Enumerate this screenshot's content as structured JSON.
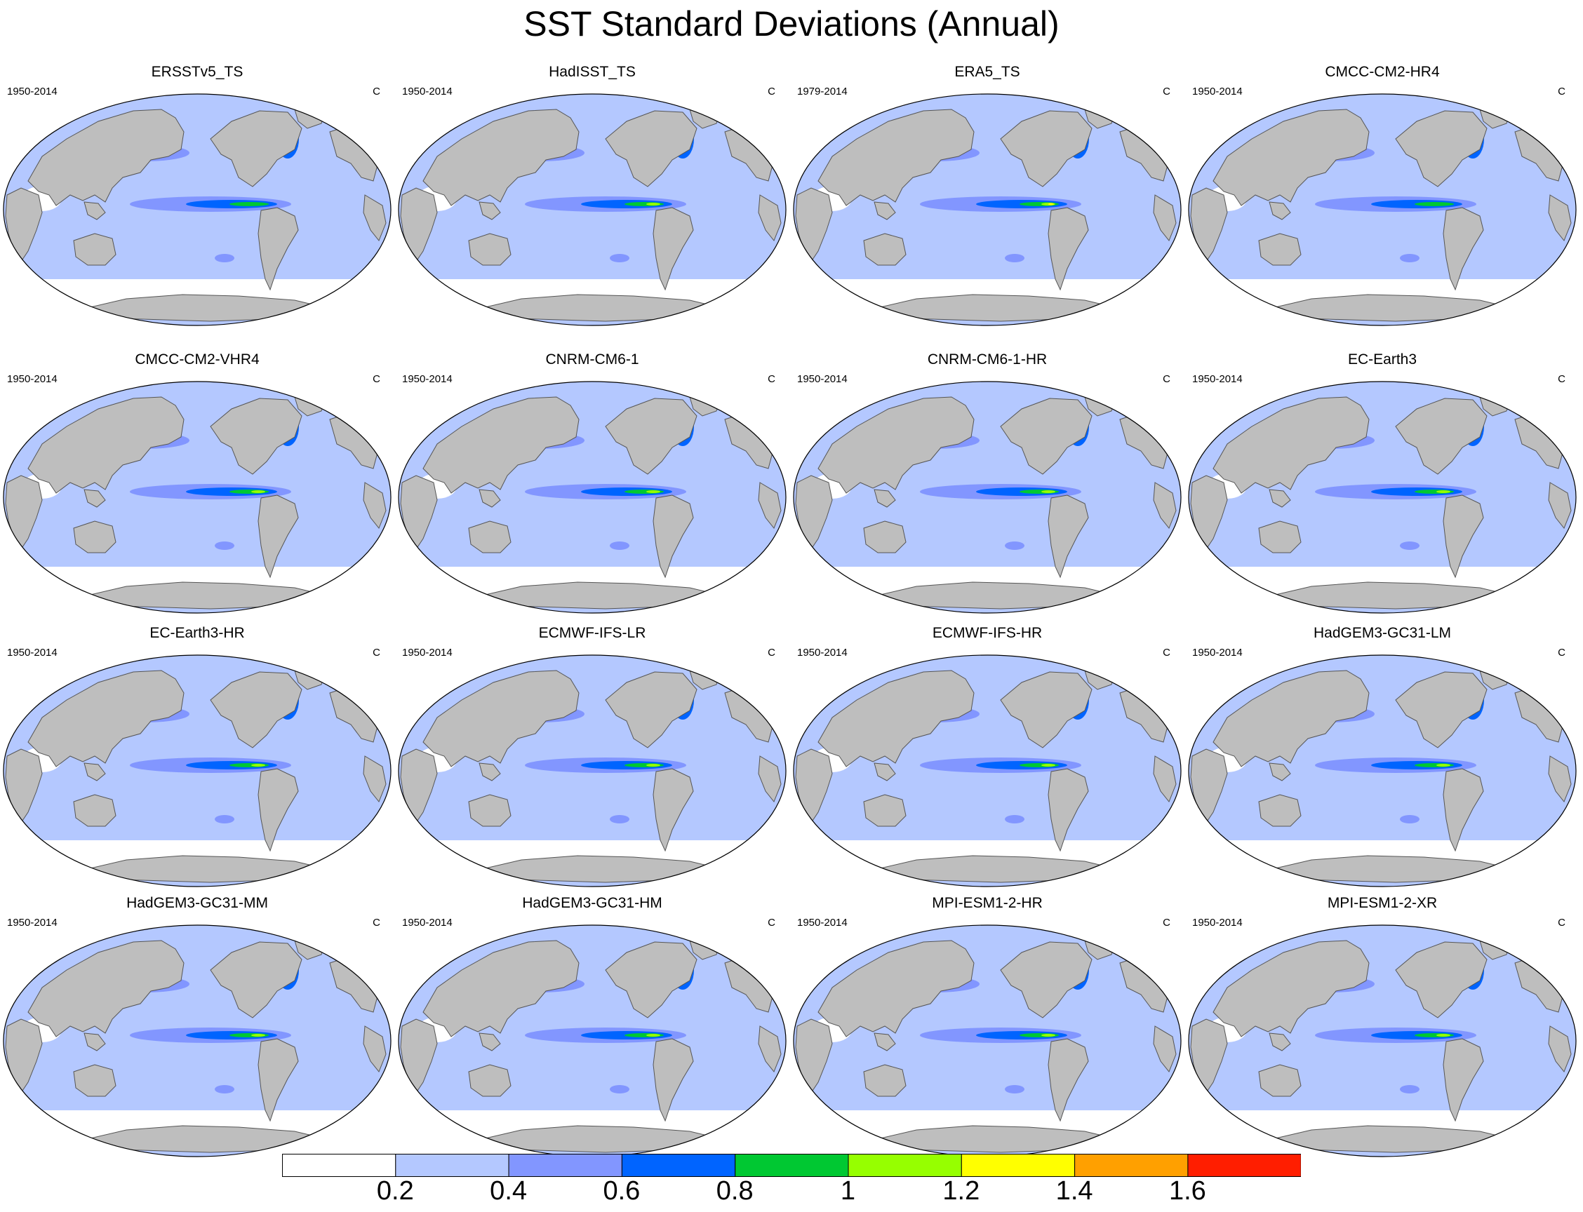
{
  "title": "SST Standard Deviations (Annual)",
  "colors": {
    "land": "#bebebe",
    "levels": [
      "#ffffff",
      "#b4c8ff",
      "#8296ff",
      "#0064ff",
      "#00c832",
      "#96ff00",
      "#ffff00",
      "#ffa000",
      "#ff1e00"
    ]
  },
  "panels": [
    {
      "name": "ERSSTv5_TS",
      "period": "1950-2014",
      "unit": "C",
      "nino_peak": 0.8
    },
    {
      "name": "HadISST_TS",
      "period": "1950-2014",
      "unit": "C",
      "nino_peak": 1.0
    },
    {
      "name": "ERA5_TS",
      "period": "1979-2014",
      "unit": "C",
      "nino_peak": 1.2
    },
    {
      "name": "CMCC-CM2-HR4",
      "period": "1950-2014",
      "unit": "C",
      "nino_peak": 0.8
    },
    {
      "name": "CMCC-CM2-VHR4",
      "period": "1950-2014",
      "unit": "C",
      "nino_peak": 1.0
    },
    {
      "name": "CNRM-CM6-1",
      "period": "1950-2014",
      "unit": "C",
      "nino_peak": 1.0
    },
    {
      "name": "CNRM-CM6-1-HR",
      "period": "1950-2014",
      "unit": "C",
      "nino_peak": 1.0
    },
    {
      "name": "EC-Earth3",
      "period": "1950-2014",
      "unit": "C",
      "nino_peak": 1.0
    },
    {
      "name": "EC-Earth3-HR",
      "period": "1950-2014",
      "unit": "C",
      "nino_peak": 1.0
    },
    {
      "name": "ECMWF-IFS-LR",
      "period": "1950-2014",
      "unit": "C",
      "nino_peak": 1.0
    },
    {
      "name": "ECMWF-IFS-HR",
      "period": "1950-2014",
      "unit": "C",
      "nino_peak": 1.0
    },
    {
      "name": "HadGEM3-GC31-LM",
      "period": "1950-2014",
      "unit": "C",
      "nino_peak": 1.0
    },
    {
      "name": "HadGEM3-GC31-MM",
      "period": "1950-2014",
      "unit": "C",
      "nino_peak": 1.0
    },
    {
      "name": "HadGEM3-GC31-HM",
      "period": "1950-2014",
      "unit": "C",
      "nino_peak": 1.0
    },
    {
      "name": "MPI-ESM1-2-HR",
      "period": "1950-2014",
      "unit": "C",
      "nino_peak": 1.0
    },
    {
      "name": "MPI-ESM1-2-XR",
      "period": "1950-2014",
      "unit": "C",
      "nino_peak": 1.0
    }
  ],
  "colorbar": {
    "labels": [
      "0.2",
      "0.4",
      "0.6",
      "0.8",
      "1",
      "1.2",
      "1.4",
      "1.6"
    ]
  }
}
